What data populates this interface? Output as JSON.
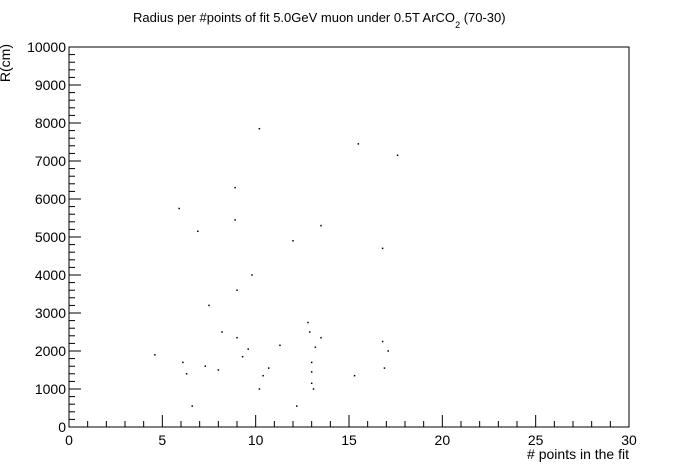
{
  "chart_data": {
    "type": "scatter",
    "title_main": "Radius per #points of fit 5.0GeV muon under 0.5T ArCO",
    "title_sub": "2",
    "title_tail": " (70-30)",
    "xlabel": "# points in the fit",
    "ylabel": "R(cm)",
    "xlim": [
      0,
      30
    ],
    "ylim": [
      0,
      10000
    ],
    "x_ticks": [
      "0",
      "5",
      "10",
      "15",
      "20",
      "25",
      "30"
    ],
    "y_ticks": [
      "0",
      "1000",
      "2000",
      "3000",
      "4000",
      "5000",
      "6000",
      "7000",
      "8000",
      "9000",
      "10000"
    ],
    "grid": false,
    "legend": "none",
    "point_color": "#000000",
    "points": [
      {
        "x": 4.6,
        "y": 1900
      },
      {
        "x": 5.9,
        "y": 5750
      },
      {
        "x": 6.1,
        "y": 1700
      },
      {
        "x": 6.3,
        "y": 1400
      },
      {
        "x": 6.6,
        "y": 550
      },
      {
        "x": 6.9,
        "y": 5150
      },
      {
        "x": 7.3,
        "y": 1600
      },
      {
        "x": 7.5,
        "y": 3200
      },
      {
        "x": 8.0,
        "y": 1500
      },
      {
        "x": 8.2,
        "y": 2500
      },
      {
        "x": 8.9,
        "y": 5450
      },
      {
        "x": 8.9,
        "y": 6300
      },
      {
        "x": 9.0,
        "y": 3600
      },
      {
        "x": 9.0,
        "y": 2350
      },
      {
        "x": 9.3,
        "y": 1850
      },
      {
        "x": 9.6,
        "y": 2050
      },
      {
        "x": 9.8,
        "y": 4000
      },
      {
        "x": 10.2,
        "y": 7850
      },
      {
        "x": 10.2,
        "y": 1000
      },
      {
        "x": 10.4,
        "y": 1350
      },
      {
        "x": 10.7,
        "y": 1550
      },
      {
        "x": 11.3,
        "y": 2150
      },
      {
        "x": 12.0,
        "y": 4900
      },
      {
        "x": 12.2,
        "y": 550
      },
      {
        "x": 12.8,
        "y": 2750
      },
      {
        "x": 12.9,
        "y": 2500
      },
      {
        "x": 13.0,
        "y": 1700
      },
      {
        "x": 13.0,
        "y": 1450
      },
      {
        "x": 13.0,
        "y": 1150
      },
      {
        "x": 13.1,
        "y": 1000
      },
      {
        "x": 13.2,
        "y": 2100
      },
      {
        "x": 13.5,
        "y": 5300
      },
      {
        "x": 13.5,
        "y": 2350
      },
      {
        "x": 15.3,
        "y": 1350
      },
      {
        "x": 15.5,
        "y": 7450
      },
      {
        "x": 16.8,
        "y": 4700
      },
      {
        "x": 16.8,
        "y": 2250
      },
      {
        "x": 16.9,
        "y": 1550
      },
      {
        "x": 17.1,
        "y": 2000
      },
      {
        "x": 17.6,
        "y": 7150
      }
    ]
  }
}
